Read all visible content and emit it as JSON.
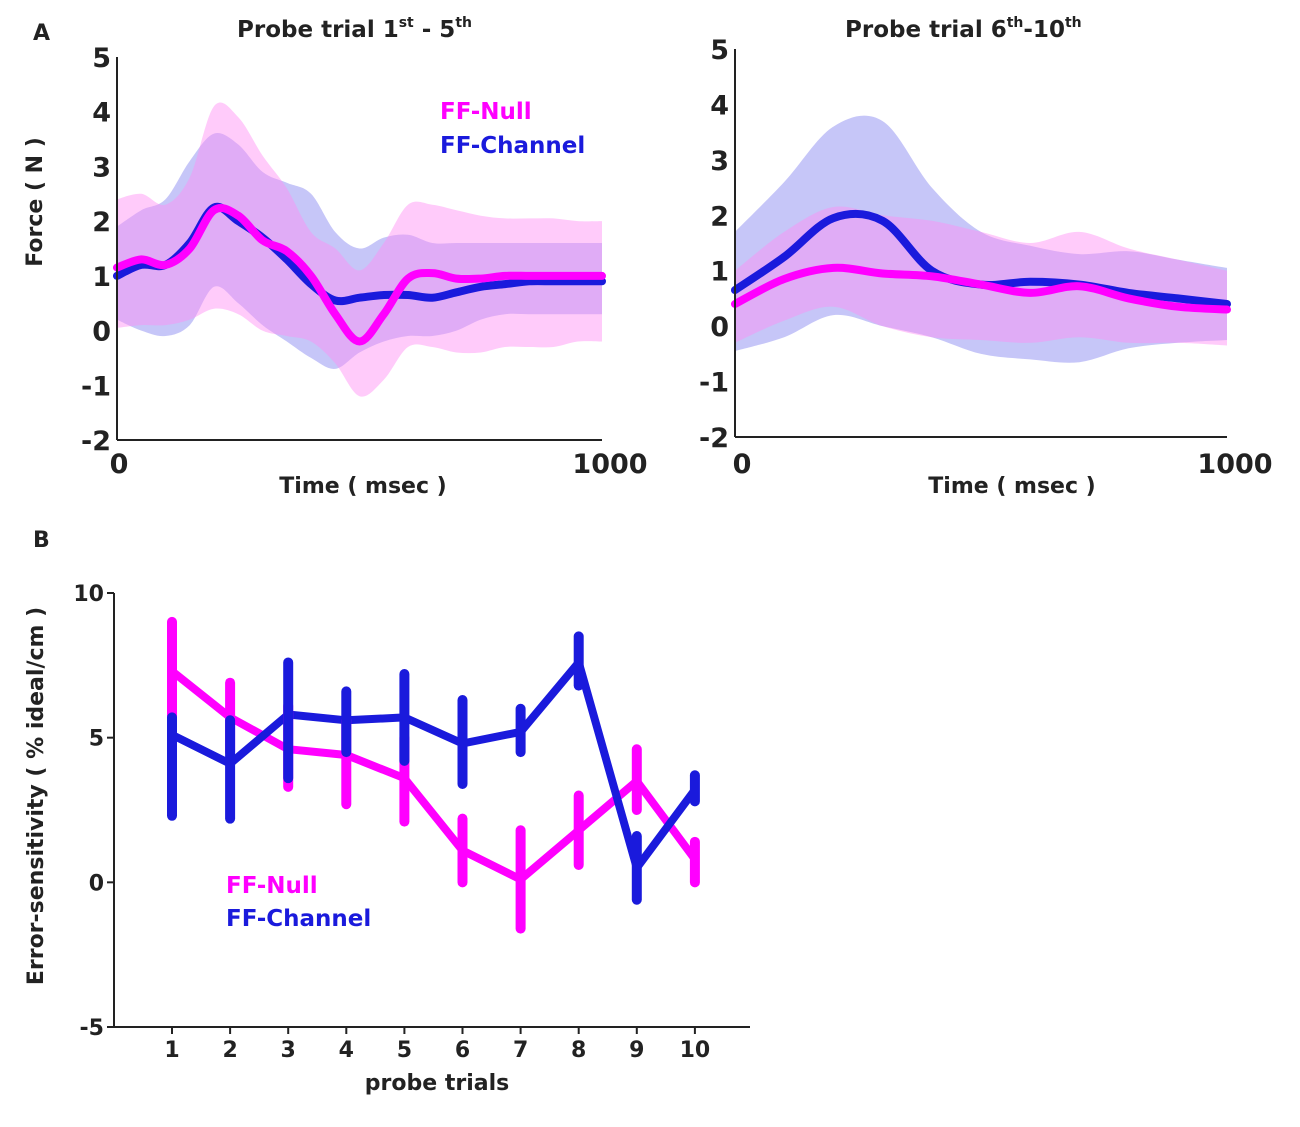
{
  "figure": {
    "panel_a_letter": "A",
    "panel_b_letter": "B"
  },
  "colors": {
    "ff_null": "#ff00ff",
    "ff_channel": "#1a1adc",
    "ff_null_band": "#ff8cf5",
    "ff_channel_band": "#8080ef",
    "axis": "#222222"
  },
  "chart_data": [
    {
      "id": "A1",
      "type": "line",
      "title_main": "Probe trial 1",
      "title_sup1": "st",
      "title_mid": " - 5",
      "title_sup2": "th",
      "xlabel": "Time ( msec )",
      "ylabel": "Force ( N )",
      "xlim": [
        0,
        1000
      ],
      "ylim": [
        -2,
        5
      ],
      "xticks": [
        "0",
        "1000"
      ],
      "yticks": [
        "5",
        "4",
        "3",
        "2",
        "1",
        "0",
        "-1",
        "-2"
      ],
      "legend": [
        "FF-Null",
        "FF-Channel"
      ],
      "series": [
        {
          "name": "FF-Null",
          "x": [
            0,
            50,
            100,
            150,
            200,
            250,
            300,
            350,
            400,
            450,
            500,
            550,
            600,
            650,
            700,
            750,
            800,
            850,
            900,
            950,
            1000
          ],
          "mean": [
            1.15,
            1.3,
            1.2,
            1.5,
            2.2,
            2.1,
            1.65,
            1.45,
            1.0,
            0.3,
            -0.2,
            0.3,
            0.95,
            1.05,
            0.95,
            0.95,
            1.0,
            1.0,
            1.0,
            1.0,
            1.0
          ],
          "upper": [
            2.4,
            2.5,
            2.3,
            2.8,
            4.1,
            3.9,
            3.2,
            2.6,
            1.8,
            1.5,
            1.1,
            1.6,
            2.3,
            2.3,
            2.2,
            2.1,
            2.05,
            2.05,
            2.05,
            2.0,
            2.0
          ],
          "lower": [
            0.05,
            0.1,
            0.1,
            0.2,
            0.4,
            0.3,
            0.0,
            -0.1,
            -0.2,
            -0.6,
            -1.2,
            -0.9,
            -0.3,
            -0.3,
            -0.4,
            -0.4,
            -0.3,
            -0.3,
            -0.3,
            -0.2,
            -0.2
          ]
        },
        {
          "name": "FF-Channel",
          "x": [
            0,
            50,
            100,
            150,
            200,
            250,
            300,
            350,
            400,
            450,
            500,
            550,
            600,
            650,
            700,
            750,
            800,
            850,
            900,
            950,
            1000
          ],
          "mean": [
            1.0,
            1.2,
            1.2,
            1.6,
            2.25,
            2.0,
            1.7,
            1.3,
            0.85,
            0.55,
            0.6,
            0.65,
            0.65,
            0.6,
            0.7,
            0.8,
            0.85,
            0.9,
            0.9,
            0.9,
            0.9
          ],
          "upper": [
            1.9,
            2.2,
            2.4,
            3.1,
            3.6,
            3.4,
            2.9,
            2.7,
            2.5,
            1.8,
            1.5,
            1.7,
            1.75,
            1.6,
            1.6,
            1.6,
            1.6,
            1.6,
            1.6,
            1.6,
            1.6
          ],
          "lower": [
            0.2,
            0.0,
            -0.1,
            0.1,
            0.8,
            0.5,
            0.1,
            -0.2,
            -0.5,
            -0.7,
            -0.4,
            -0.2,
            -0.1,
            -0.1,
            0.0,
            0.2,
            0.3,
            0.3,
            0.3,
            0.3,
            0.3
          ]
        }
      ]
    },
    {
      "id": "A2",
      "type": "line",
      "title_main": "Probe trial 6",
      "title_sup1": "th",
      "title_mid": "-10",
      "title_sup2": "th",
      "xlabel": "Time ( msec )",
      "xlim": [
        0,
        1000
      ],
      "ylim": [
        -2,
        5
      ],
      "xticks": [
        "0",
        "1000"
      ],
      "yticks": [
        "5",
        "4",
        "3",
        "2",
        "1",
        "0",
        "-1",
        "-2"
      ],
      "series": [
        {
          "name": "FF-Null",
          "x": [
            0,
            100,
            200,
            300,
            400,
            500,
            600,
            700,
            800,
            900,
            1000
          ],
          "mean": [
            0.4,
            0.85,
            1.05,
            0.95,
            0.9,
            0.75,
            0.6,
            0.72,
            0.5,
            0.35,
            0.3
          ],
          "upper": [
            1.0,
            1.7,
            2.15,
            2.0,
            1.9,
            1.7,
            1.5,
            1.7,
            1.4,
            1.2,
            1.0
          ],
          "lower": [
            -0.3,
            0.1,
            0.35,
            0.0,
            -0.2,
            -0.25,
            -0.3,
            -0.2,
            -0.3,
            -0.3,
            -0.35
          ]
        },
        {
          "name": "FF-Channel",
          "x": [
            0,
            100,
            200,
            300,
            400,
            500,
            600,
            700,
            800,
            900,
            1000
          ],
          "mean": [
            0.65,
            1.25,
            1.95,
            1.9,
            1.0,
            0.75,
            0.8,
            0.75,
            0.6,
            0.5,
            0.4
          ],
          "upper": [
            1.7,
            2.6,
            3.6,
            3.7,
            2.5,
            1.7,
            1.45,
            1.3,
            1.35,
            1.2,
            1.05
          ],
          "lower": [
            -0.45,
            -0.2,
            0.2,
            0.0,
            -0.2,
            -0.5,
            -0.6,
            -0.65,
            -0.4,
            -0.3,
            -0.25
          ]
        }
      ]
    },
    {
      "id": "B",
      "type": "line",
      "xlabel": "probe trials",
      "ylabel": "Error-sensitivity ( % ideal/cm )",
      "xlim": [
        0,
        11
      ],
      "ylim": [
        -5,
        10
      ],
      "categories": [
        "1",
        "2",
        "3",
        "4",
        "5",
        "6",
        "7",
        "8",
        "9",
        "10"
      ],
      "yticks": [
        "10",
        "5",
        "0",
        "-5"
      ],
      "legend": [
        "FF-Null",
        "FF-Channel"
      ],
      "series": [
        {
          "name": "FF-Null",
          "values": [
            7.3,
            5.7,
            4.6,
            4.4,
            3.6,
            1.1,
            0.1,
            1.8,
            3.5,
            0.8
          ],
          "err_low": [
            5.7,
            4.5,
            3.3,
            2.7,
            2.1,
            0.0,
            -1.6,
            0.6,
            2.5,
            0.0
          ],
          "err_high": [
            9.0,
            6.9,
            6.1,
            5.6,
            5.0,
            2.2,
            1.8,
            3.0,
            4.6,
            1.4
          ]
        },
        {
          "name": "FF-Channel",
          "values": [
            5.1,
            4.1,
            5.8,
            5.6,
            5.7,
            4.8,
            5.2,
            7.6,
            0.5,
            3.2
          ],
          "err_low": [
            2.3,
            2.2,
            3.6,
            4.5,
            4.2,
            3.4,
            4.5,
            6.8,
            -0.6,
            2.8
          ],
          "err_high": [
            5.7,
            5.6,
            7.6,
            6.6,
            7.2,
            6.3,
            6.0,
            8.5,
            1.6,
            3.7
          ]
        }
      ]
    }
  ]
}
